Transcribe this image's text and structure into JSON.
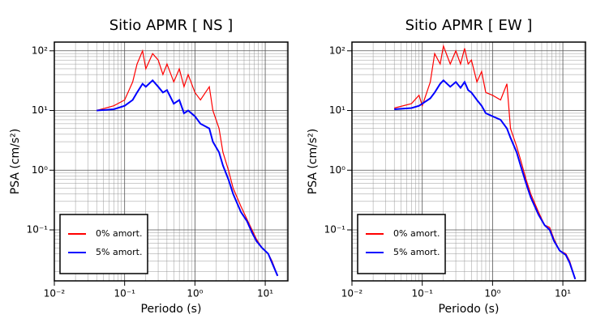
{
  "chart_data": [
    {
      "type": "line",
      "title": "Sitio APMR [ NS ]",
      "x_label": "Periodo (s)",
      "y_label": "PSA (cm/s²)",
      "xscale": "log",
      "yscale": "log",
      "grid": true,
      "legend": "lower left",
      "xlim": [
        0.01,
        21
      ],
      "ylim": [
        0.014,
        140
      ],
      "xticks": [
        {
          "value": 0.01,
          "label": "10⁻²"
        },
        {
          "value": 0.1,
          "label": "10⁻¹"
        },
        {
          "value": 1,
          "label": "10⁰"
        },
        {
          "value": 10,
          "label": "10¹"
        }
      ],
      "yticks": [
        {
          "value": 0.1,
          "label": "10⁻¹"
        },
        {
          "value": 1,
          "label": "10⁰"
        },
        {
          "value": 10,
          "label": "10¹"
        },
        {
          "value": 100,
          "label": "10²"
        }
      ],
      "x": [
        0.04,
        0.07,
        0.1,
        0.13,
        0.15,
        0.18,
        0.2,
        0.25,
        0.3,
        0.35,
        0.4,
        0.5,
        0.6,
        0.7,
        0.8,
        1.0,
        1.2,
        1.6,
        1.8,
        2.2,
        2.5,
        3,
        3.5,
        4.5,
        5.5,
        6.5,
        7.5,
        9,
        11,
        12.5,
        15
      ],
      "series": [
        {
          "name": "0% amort.",
          "color": "#ff0000",
          "values": [
            10,
            12,
            15,
            30,
            60,
            100,
            50,
            90,
            70,
            40,
            60,
            30,
            50,
            25,
            40,
            20,
            15,
            25,
            10,
            5,
            2,
            1.0,
            0.5,
            0.25,
            0.15,
            0.1,
            0.07,
            0.05,
            0.04,
            0.03,
            0.017
          ]
        },
        {
          "name": "5% amort.",
          "color": "#0000ff",
          "values": [
            10,
            10.5,
            12,
            15,
            20,
            28,
            25,
            32,
            25,
            20,
            22,
            13,
            15,
            9,
            10,
            8,
            6,
            5,
            3,
            2,
            1.2,
            0.7,
            0.4,
            0.2,
            0.14,
            0.09,
            0.065,
            0.05,
            0.04,
            0.028,
            0.017
          ]
        }
      ]
    },
    {
      "type": "line",
      "title": "Sitio APMR [ EW ]",
      "x_label": "Periodo (s)",
      "y_label": "PSA (cm/s²)",
      "xscale": "log",
      "yscale": "log",
      "grid": true,
      "legend": "lower left",
      "xlim": [
        0.01,
        21
      ],
      "ylim": [
        0.014,
        140
      ],
      "xticks": [
        {
          "value": 0.01,
          "label": "10⁻²"
        },
        {
          "value": 0.1,
          "label": "10⁻¹"
        },
        {
          "value": 1,
          "label": "10⁰"
        },
        {
          "value": 10,
          "label": "10¹"
        }
      ],
      "yticks": [
        {
          "value": 0.1,
          "label": "10⁻¹"
        },
        {
          "value": 1,
          "label": "10⁰"
        },
        {
          "value": 10,
          "label": "10¹"
        },
        {
          "value": 100,
          "label": "10²"
        }
      ],
      "x": [
        0.04,
        0.07,
        0.09,
        0.1,
        0.13,
        0.15,
        0.18,
        0.2,
        0.25,
        0.3,
        0.35,
        0.4,
        0.45,
        0.5,
        0.6,
        0.7,
        0.8,
        1.0,
        1.3,
        1.6,
        1.8,
        2.2,
        2.5,
        3,
        3.5,
        4.5,
        5.5,
        6.5,
        7.5,
        9,
        11,
        12.5,
        15
      ],
      "series": [
        {
          "name": "0% amort.",
          "color": "#ff0000",
          "values": [
            11,
            13,
            18,
            12,
            30,
            90,
            60,
            120,
            60,
            100,
            60,
            110,
            60,
            70,
            30,
            45,
            20,
            18,
            15,
            28,
            5,
            2.5,
            1.5,
            0.7,
            0.4,
            0.2,
            0.12,
            0.11,
            0.07,
            0.045,
            0.04,
            0.03,
            0.015
          ]
        },
        {
          "name": "5% amort.",
          "color": "#0000ff",
          "values": [
            10.5,
            11,
            12,
            13,
            16,
            20,
            28,
            32,
            25,
            30,
            24,
            30,
            22,
            20,
            15,
            12,
            9,
            8,
            7,
            5,
            3.5,
            2,
            1.2,
            0.6,
            0.35,
            0.18,
            0.12,
            0.1,
            0.065,
            0.045,
            0.038,
            0.028,
            0.015
          ]
        }
      ]
    }
  ]
}
